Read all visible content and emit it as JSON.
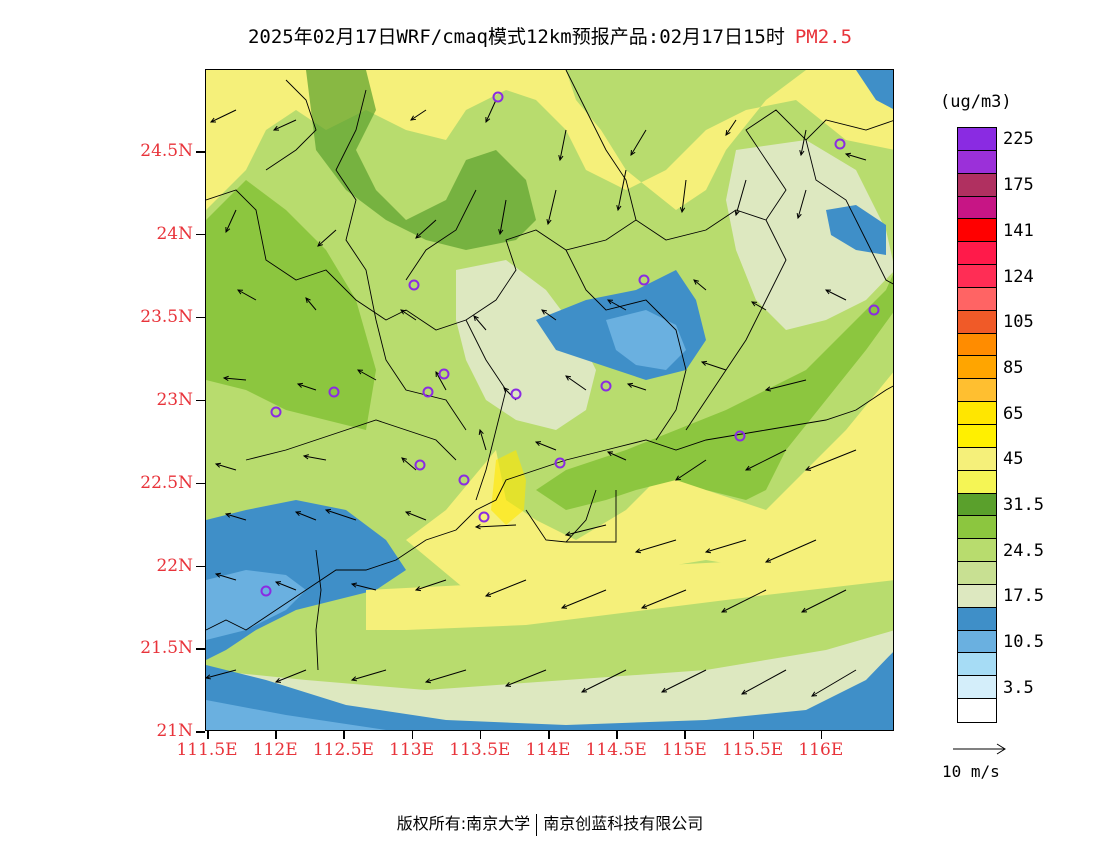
{
  "title": {
    "main": "2025年02月17日WRF/cmaq模式12km预报产品:02月17日15时",
    "parameter": "PM2.5"
  },
  "map": {
    "lat_ticks": [
      "24.5N",
      "24N",
      "23.5N",
      "23N",
      "22.5N",
      "22N",
      "21.5N",
      "21N"
    ],
    "lon_ticks": [
      "111.5E",
      "112E",
      "112.5E",
      "113E",
      "113.5E",
      "114E",
      "114.5E",
      "115E",
      "115.5E",
      "116E"
    ]
  },
  "legend": {
    "unit": "(ug/m3)",
    "levels": [
      {
        "label": "225",
        "color": "#8a2be2"
      },
      {
        "label": "",
        "color": "#9b30d9"
      },
      {
        "label": "175",
        "color": "#b03060"
      },
      {
        "label": "",
        "color": "#c71585"
      },
      {
        "label": "141",
        "color": "#ff0000"
      },
      {
        "label": "",
        "color": "#ff1a4a"
      },
      {
        "label": "124",
        "color": "#ff2d55"
      },
      {
        "label": "",
        "color": "#ff6464"
      },
      {
        "label": "105",
        "color": "#f05a28"
      },
      {
        "label": "",
        "color": "#ff8c00"
      },
      {
        "label": "85",
        "color": "#ffa500"
      },
      {
        "label": "",
        "color": "#ffbf30"
      },
      {
        "label": "65",
        "color": "#ffe600"
      },
      {
        "label": "",
        "color": "#fff000"
      },
      {
        "label": "45",
        "color": "#f5f07a"
      },
      {
        "label": "",
        "color": "#f5f555"
      },
      {
        "label": "31.5",
        "color": "#5aa02c"
      },
      {
        "label": "",
        "color": "#8cc63f"
      },
      {
        "label": "24.5",
        "color": "#b8dc6e"
      },
      {
        "label": "",
        "color": "#c8e092"
      },
      {
        "label": "17.5",
        "color": "#dde8c0"
      },
      {
        "label": "",
        "color": "#3f8fc8"
      },
      {
        "label": "10.5",
        "color": "#6ab0e0"
      },
      {
        "label": "",
        "color": "#a6dcf5"
      },
      {
        "label": "3.5",
        "color": "#d4eefa"
      },
      {
        "label": "",
        "color": "#ffffff"
      }
    ]
  },
  "wind_reference": {
    "label": "10 m/s"
  },
  "copyright": {
    "left": "版权所有:南京大学",
    "right": "南京创蓝科技有限公司"
  },
  "colors": {
    "axis_label": "#e8333a",
    "station_marker": "#8a2be2"
  }
}
